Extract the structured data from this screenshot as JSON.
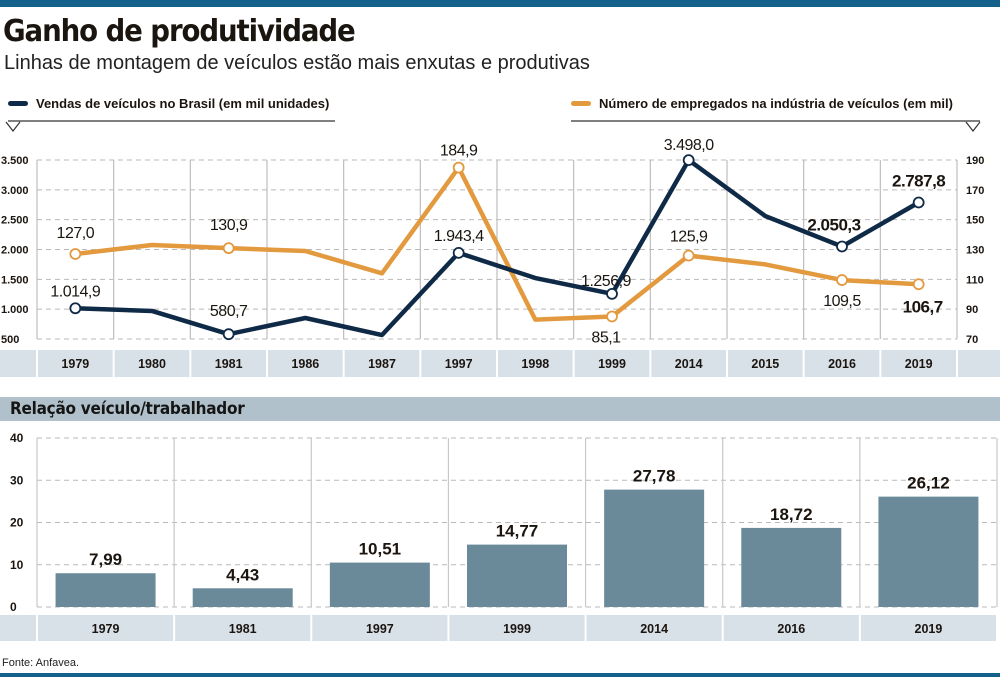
{
  "header": {
    "title": "Ganho de produtividade",
    "subtitle": "Linhas de montagem de veículos estão mais enxutas e produtivas"
  },
  "colors": {
    "brand_bar": "#14628c",
    "sales_line": "#0f2a47",
    "employees_line": "#e39a3f",
    "bar_fill": "#6b8a99",
    "axis_band": "#d8e1e8",
    "section_header": "#b0c1cb"
  },
  "footer": {
    "source": "Fonte: Anfavea."
  },
  "chart_data": [
    {
      "type": "line",
      "title": "Ganho de produtividade",
      "x": [
        "1979",
        "1980",
        "1981",
        "1986",
        "1987",
        "1997",
        "1998",
        "1999",
        "2014",
        "2015",
        "2016",
        "2019"
      ],
      "series": [
        {
          "name": "Vendas de veículos no Brasil (em mil unidades)",
          "axis": "left",
          "values": [
            1014.9,
            970,
            580.7,
            852,
            567,
            1943.4,
            1522,
            1256.9,
            3498.0,
            2560,
            2050.3,
            2787.8
          ],
          "labels": [
            "1.014,9",
            "",
            "580,7",
            "",
            "",
            "1.943,4",
            "",
            "1.256,9",
            "3.498,0",
            "",
            "2.050,3",
            "2.787,8"
          ],
          "bold_labels": [
            false,
            false,
            false,
            false,
            false,
            false,
            false,
            false,
            false,
            false,
            true,
            true
          ]
        },
        {
          "name": "Número de empregados na indústria de veículos (em mil)",
          "axis": "right",
          "values": [
            127.0,
            133,
            130.9,
            129,
            114,
            184.9,
            83,
            85.1,
            125.9,
            120,
            109.5,
            106.7
          ],
          "labels": [
            "127,0",
            "",
            "130,9",
            "",
            "",
            "184,9",
            "",
            "85,1",
            "125,9",
            "",
            "109,5",
            "106,7"
          ],
          "bold_labels": [
            false,
            false,
            false,
            false,
            false,
            false,
            false,
            false,
            false,
            false,
            false,
            true
          ]
        }
      ],
      "y_left": {
        "ylim": [
          500,
          3500
        ],
        "ticks": [
          "500",
          "1.000",
          "1.500",
          "2.000",
          "2.500",
          "3.000",
          "3.500"
        ],
        "tick_values": [
          500,
          1000,
          1500,
          2000,
          2500,
          3000,
          3500
        ]
      },
      "y_right": {
        "ylim": [
          70,
          190
        ],
        "ticks": [
          "70",
          "90",
          "110",
          "130",
          "150",
          "170",
          "190"
        ],
        "tick_values": [
          70,
          90,
          110,
          130,
          150,
          170,
          190
        ]
      },
      "legend": {
        "left": "Vendas de veículos no Brasil (em mil unidades)",
        "right": "Número de empregados na indústria de veículos (em mil)",
        "placement": "top"
      },
      "grid": true
    },
    {
      "type": "bar",
      "title": "Relação veículo/trabalhador",
      "categories": [
        "1979",
        "1981",
        "1997",
        "1999",
        "2014",
        "2016",
        "2019"
      ],
      "values": [
        7.99,
        4.43,
        10.51,
        14.77,
        27.78,
        18.72,
        26.12
      ],
      "labels": [
        "7,99",
        "4,43",
        "10,51",
        "14,77",
        "27,78",
        "18,72",
        "26,12"
      ],
      "ylim": [
        0,
        40
      ],
      "ticks": [
        "0",
        "10",
        "20",
        "30",
        "40"
      ],
      "tick_values": [
        0,
        10,
        20,
        30,
        40
      ],
      "xlabel": "",
      "ylabel": "",
      "grid": true
    }
  ]
}
